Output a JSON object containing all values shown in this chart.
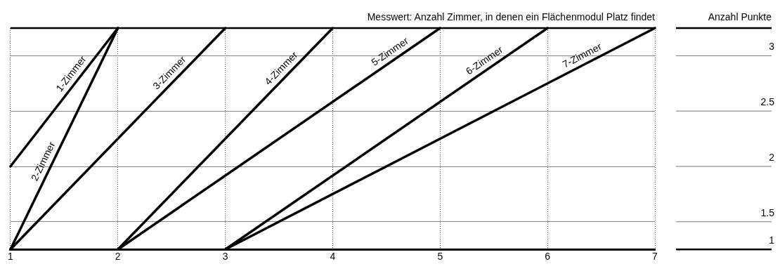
{
  "chart_data": {
    "type": "line",
    "title": "Messwert: Anzahl Zimmer, in denen ein Flächenmodul Platz findet",
    "ylabel": "Anzahl Punkte",
    "xlim": [
      1,
      7
    ],
    "xticks": [
      1,
      2,
      3,
      4,
      5,
      6,
      7
    ],
    "ylim": [
      1.25,
      3.25
    ],
    "yticks": [
      {
        "value": 1.25,
        "label": "1"
      },
      1.5,
      2,
      2.5,
      3
    ],
    "grid": true,
    "legend": false,
    "marker": "none",
    "line_style": "solid",
    "series": [
      {
        "name": "1-Zimmer",
        "color": "#000000",
        "x": [
          1,
          2
        ],
        "values": [
          2,
          3.25
        ]
      },
      {
        "name": "2-Zimmer",
        "color": "#000000",
        "x": [
          1,
          2
        ],
        "values": [
          1.25,
          3.25
        ]
      },
      {
        "name": "3-Zimmer",
        "color": "#000000",
        "x": [
          1,
          3
        ],
        "values": [
          1.25,
          3.25
        ]
      },
      {
        "name": "4-Zimmer",
        "color": "#000000",
        "x": [
          2,
          4
        ],
        "values": [
          1.25,
          3.25
        ]
      },
      {
        "name": "5-Zimmer",
        "color": "#000000",
        "x": [
          2,
          5
        ],
        "values": [
          1.25,
          3.25
        ]
      },
      {
        "name": "6-Zimmer",
        "color": "#000000",
        "x": [
          3,
          6
        ],
        "values": [
          1.25,
          3.25
        ]
      },
      {
        "name": "7-Zimmer",
        "color": "#000000",
        "x": [
          3,
          7
        ],
        "values": [
          1.25,
          3.25
        ]
      }
    ]
  }
}
